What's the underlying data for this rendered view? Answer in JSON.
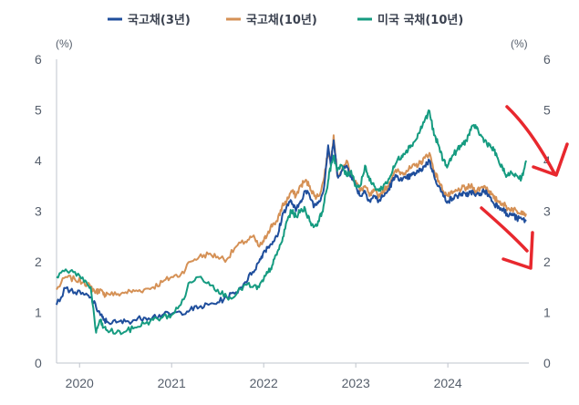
{
  "chart_data": {
    "type": "line",
    "title": "",
    "xlabel": "",
    "ylabel": "",
    "y_unit_left": "(%)",
    "y_unit_right": "(%)",
    "ylim": [
      0,
      6
    ],
    "xlim": [
      2019.75,
      2024.86
    ],
    "yticks": [
      "0",
      "1",
      "2",
      "3",
      "4",
      "5",
      "6"
    ],
    "xticks": [
      {
        "label": "2020",
        "x": 2020.0
      },
      {
        "label": "2021",
        "x": 2021.0
      },
      {
        "label": "2022",
        "x": 2022.0
      },
      {
        "label": "2023",
        "x": 2023.0
      },
      {
        "label": "2024",
        "x": 2024.0
      }
    ],
    "legend_position": "top-center",
    "grid": false,
    "series": [
      {
        "name": "국고채(3년)",
        "color": "#1f4e9c",
        "x": [
          2019.75,
          2019.85,
          2019.95,
          2020.05,
          2020.12,
          2020.18,
          2020.22,
          2020.26,
          2020.3,
          2020.4,
          2020.5,
          2020.6,
          2020.7,
          2020.8,
          2020.9,
          2021.0,
          2021.1,
          2021.2,
          2021.3,
          2021.4,
          2021.5,
          2021.6,
          2021.7,
          2021.8,
          2021.88,
          2021.95,
          2022.0,
          2022.05,
          2022.1,
          2022.15,
          2022.2,
          2022.25,
          2022.3,
          2022.35,
          2022.4,
          2022.45,
          2022.5,
          2022.55,
          2022.6,
          2022.65,
          2022.7,
          2022.73,
          2022.76,
          2022.8,
          2022.85,
          2022.9,
          2022.95,
          2023.0,
          2023.05,
          2023.1,
          2023.15,
          2023.2,
          2023.25,
          2023.3,
          2023.35,
          2023.4,
          2023.45,
          2023.5,
          2023.55,
          2023.6,
          2023.65,
          2023.7,
          2023.75,
          2023.8,
          2023.85,
          2023.9,
          2023.95,
          2024.0,
          2024.05,
          2024.1,
          2024.15,
          2024.2,
          2024.25,
          2024.3,
          2024.35,
          2024.4,
          2024.45,
          2024.5,
          2024.55,
          2024.6,
          2024.65,
          2024.7,
          2024.75,
          2024.8,
          2024.85
        ],
        "values": [
          1.15,
          1.48,
          1.4,
          1.35,
          1.3,
          1.1,
          0.98,
          0.85,
          0.82,
          0.8,
          0.82,
          0.85,
          0.9,
          0.92,
          0.95,
          0.97,
          1.0,
          1.05,
          1.1,
          1.15,
          1.2,
          1.3,
          1.4,
          1.6,
          1.8,
          2.0,
          2.2,
          2.3,
          2.4,
          2.5,
          2.9,
          3.1,
          3.2,
          3.0,
          3.2,
          3.4,
          3.3,
          3.1,
          3.2,
          3.4,
          4.3,
          3.9,
          4.4,
          3.7,
          3.8,
          3.9,
          3.7,
          3.5,
          3.3,
          3.4,
          3.2,
          3.3,
          3.2,
          3.3,
          3.4,
          3.6,
          3.7,
          3.6,
          3.65,
          3.7,
          3.75,
          3.8,
          3.9,
          4.0,
          3.7,
          3.5,
          3.3,
          3.2,
          3.25,
          3.3,
          3.35,
          3.3,
          3.4,
          3.3,
          3.35,
          3.4,
          3.3,
          3.15,
          3.1,
          3.05,
          2.9,
          2.95,
          2.85,
          2.85,
          2.8
        ]
      },
      {
        "name": "국고채(10년)",
        "color": "#d59156",
        "x": [
          2019.75,
          2019.85,
          2019.95,
          2020.05,
          2020.12,
          2020.18,
          2020.22,
          2020.26,
          2020.3,
          2020.4,
          2020.5,
          2020.6,
          2020.7,
          2020.8,
          2020.9,
          2021.0,
          2021.1,
          2021.2,
          2021.3,
          2021.4,
          2021.5,
          2021.6,
          2021.7,
          2021.8,
          2021.88,
          2021.95,
          2022.0,
          2022.05,
          2022.1,
          2022.15,
          2022.2,
          2022.25,
          2022.3,
          2022.35,
          2022.4,
          2022.45,
          2022.5,
          2022.55,
          2022.6,
          2022.65,
          2022.7,
          2022.73,
          2022.76,
          2022.8,
          2022.85,
          2022.9,
          2022.95,
          2023.0,
          2023.05,
          2023.1,
          2023.15,
          2023.2,
          2023.25,
          2023.3,
          2023.35,
          2023.4,
          2023.45,
          2023.5,
          2023.55,
          2023.6,
          2023.65,
          2023.7,
          2023.75,
          2023.8,
          2023.85,
          2023.9,
          2023.95,
          2024.0,
          2024.05,
          2024.1,
          2024.15,
          2024.2,
          2024.25,
          2024.3,
          2024.35,
          2024.4,
          2024.45,
          2024.5,
          2024.55,
          2024.6,
          2024.65,
          2024.7,
          2024.75,
          2024.8,
          2024.85
        ],
        "values": [
          1.45,
          1.7,
          1.65,
          1.6,
          1.5,
          1.4,
          1.45,
          1.35,
          1.38,
          1.35,
          1.4,
          1.42,
          1.45,
          1.5,
          1.6,
          1.7,
          1.75,
          2.0,
          2.1,
          2.15,
          2.1,
          2.05,
          2.3,
          2.4,
          2.5,
          2.3,
          2.4,
          2.6,
          2.75,
          2.8,
          3.1,
          3.2,
          3.4,
          3.3,
          3.5,
          3.6,
          3.5,
          3.3,
          3.3,
          3.6,
          4.2,
          4.0,
          4.5,
          3.7,
          3.8,
          4.0,
          3.7,
          3.6,
          3.4,
          3.5,
          3.3,
          3.4,
          3.3,
          3.4,
          3.5,
          3.7,
          3.8,
          3.75,
          3.8,
          3.85,
          3.9,
          3.95,
          4.05,
          4.15,
          3.8,
          3.6,
          3.4,
          3.3,
          3.35,
          3.4,
          3.45,
          3.45,
          3.5,
          3.4,
          3.45,
          3.5,
          3.4,
          3.25,
          3.2,
          3.15,
          3.05,
          3.05,
          3.0,
          3.0,
          2.95
        ]
      },
      {
        "name": "미국 국채(10년)",
        "color": "#159b80",
        "x": [
          2019.75,
          2019.85,
          2019.95,
          2020.05,
          2020.12,
          2020.18,
          2020.22,
          2020.26,
          2020.3,
          2020.4,
          2020.5,
          2020.6,
          2020.7,
          2020.8,
          2020.9,
          2021.0,
          2021.1,
          2021.2,
          2021.3,
          2021.4,
          2021.5,
          2021.6,
          2021.7,
          2021.8,
          2021.88,
          2021.95,
          2022.0,
          2022.05,
          2022.1,
          2022.15,
          2022.2,
          2022.25,
          2022.3,
          2022.35,
          2022.4,
          2022.45,
          2022.5,
          2022.55,
          2022.6,
          2022.65,
          2022.7,
          2022.73,
          2022.76,
          2022.8,
          2022.85,
          2022.9,
          2022.95,
          2023.0,
          2023.05,
          2023.1,
          2023.15,
          2023.2,
          2023.25,
          2023.3,
          2023.35,
          2023.4,
          2023.45,
          2023.5,
          2023.55,
          2023.6,
          2023.65,
          2023.7,
          2023.75,
          2023.8,
          2023.85,
          2023.9,
          2023.95,
          2024.0,
          2024.05,
          2024.1,
          2024.15,
          2024.2,
          2024.25,
          2024.3,
          2024.35,
          2024.4,
          2024.45,
          2024.5,
          2024.55,
          2024.6,
          2024.65,
          2024.7,
          2024.75,
          2024.8,
          2024.85
        ],
        "values": [
          1.7,
          1.85,
          1.8,
          1.6,
          1.5,
          0.6,
          0.85,
          0.7,
          0.65,
          0.6,
          0.62,
          0.7,
          0.78,
          0.85,
          0.9,
          0.95,
          1.15,
          1.6,
          1.7,
          1.6,
          1.45,
          1.3,
          1.35,
          1.55,
          1.5,
          1.5,
          1.65,
          1.8,
          1.95,
          2.2,
          2.4,
          2.8,
          3.0,
          2.9,
          3.0,
          3.05,
          2.8,
          2.7,
          2.8,
          3.1,
          3.6,
          3.9,
          4.1,
          3.8,
          3.9,
          3.7,
          3.8,
          3.5,
          3.5,
          3.9,
          3.6,
          3.5,
          3.4,
          3.5,
          3.6,
          3.8,
          4.0,
          4.1,
          4.2,
          4.3,
          4.4,
          4.6,
          4.8,
          4.98,
          4.5,
          4.3,
          4.0,
          3.9,
          4.1,
          4.2,
          4.3,
          4.4,
          4.6,
          4.7,
          4.5,
          4.4,
          4.3,
          4.2,
          4.0,
          3.8,
          3.7,
          3.75,
          3.7,
          3.65,
          4.0
        ]
      }
    ]
  }
}
